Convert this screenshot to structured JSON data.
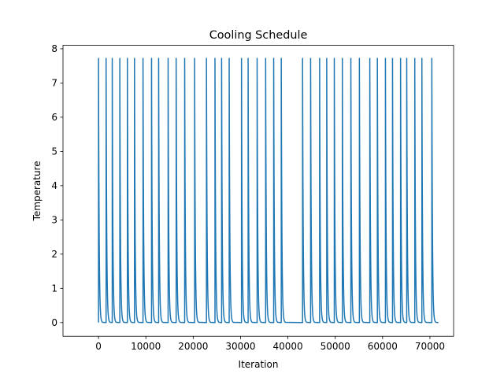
{
  "chart_data": {
    "type": "line",
    "title": "Cooling Schedule",
    "xlabel": "Iteration",
    "ylabel": "Temperature",
    "xlim": [
      -7500,
      75000
    ],
    "ylim": [
      -0.4,
      8.1
    ],
    "xticks": [
      0,
      10000,
      20000,
      30000,
      40000,
      50000,
      60000,
      70000
    ],
    "xtick_labels": [
      "0",
      "10000",
      "20000",
      "30000",
      "40000",
      "50000",
      "60000",
      "70000"
    ],
    "yticks": [
      0,
      1,
      2,
      3,
      4,
      5,
      6,
      7,
      8
    ],
    "ytick_labels": [
      "0",
      "1",
      "2",
      "3",
      "4",
      "5",
      "6",
      "7",
      "8"
    ],
    "grid": false,
    "legend": "none",
    "series": [
      {
        "color": "#1f77b4",
        "peak_temperature": 7.72,
        "floor_temperature": 0.0,
        "end_iteration": 71800,
        "reheat_iterations": [
          0,
          1600,
          2900,
          4500,
          6100,
          7600,
          9400,
          11200,
          12700,
          14700,
          16400,
          18200,
          20300,
          22800,
          24600,
          26000,
          27600,
          30200,
          31600,
          33500,
          35300,
          37000,
          38600,
          43100,
          44800,
          46700,
          48200,
          49800,
          51500,
          53300,
          55100,
          57300,
          58900,
          60600,
          62100,
          63800,
          65100,
          66800,
          68300,
          70400
        ]
      }
    ]
  }
}
